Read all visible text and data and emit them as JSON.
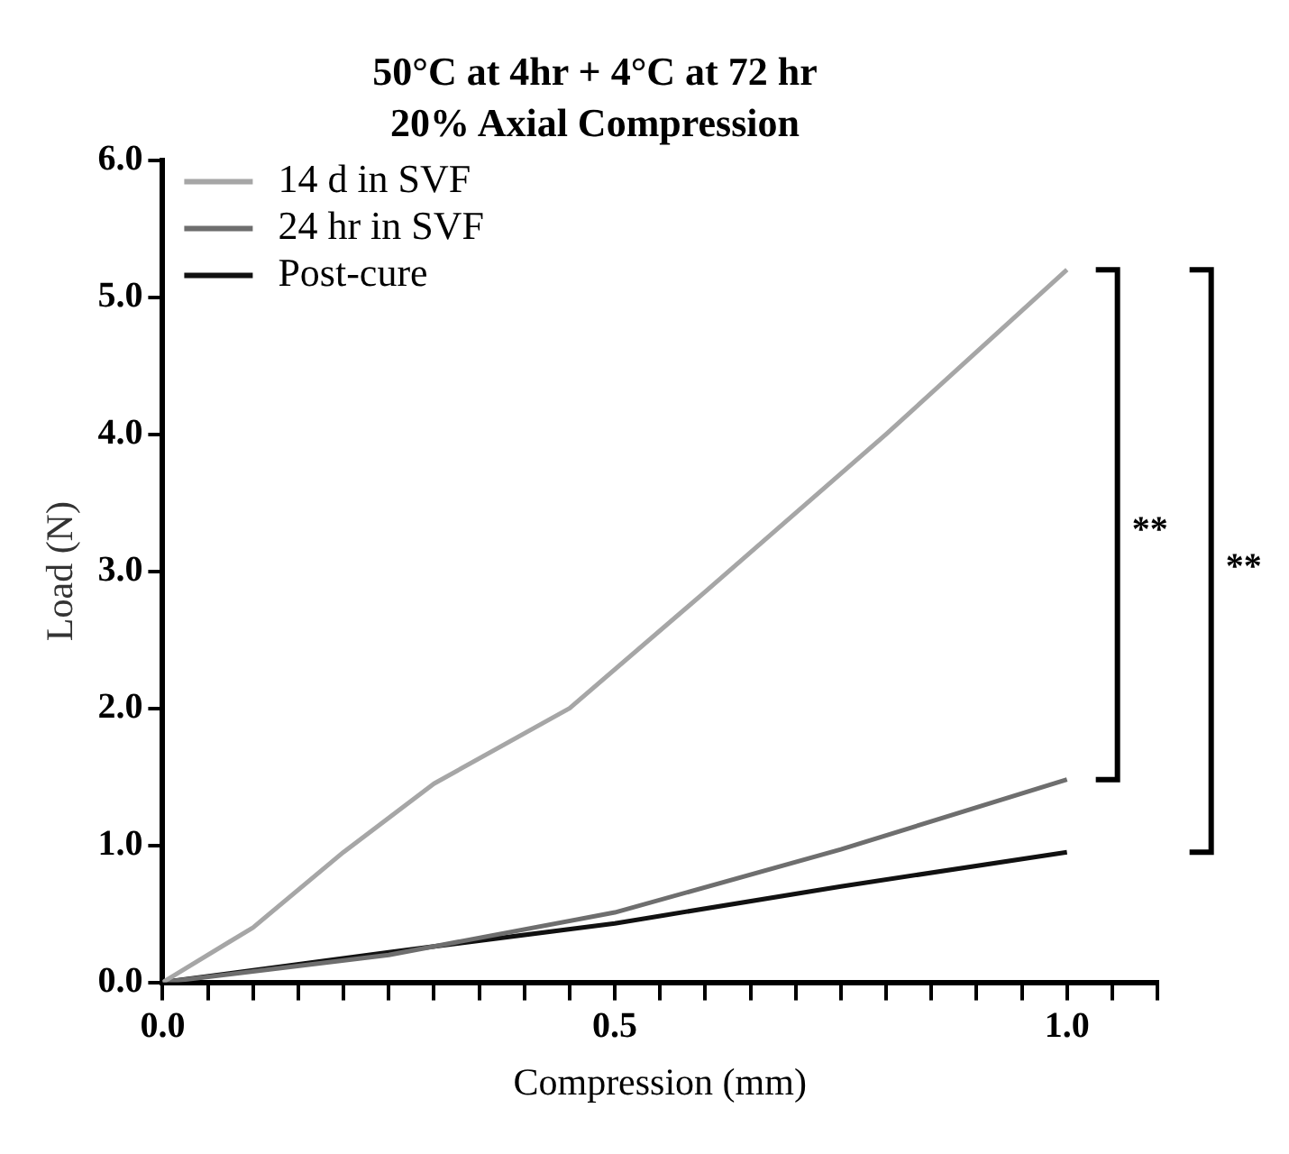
{
  "chart_data": {
    "type": "line",
    "title": "50°C at 4hr + 4°C at 72 hr",
    "subtitle": "20% Axial Compression",
    "xlabel": "Compression (mm)",
    "ylabel": "Load (N)",
    "series": [
      {
        "name": "14 d in SVF",
        "color": "#a6a6a6",
        "x": [
          0,
          0.1,
          0.2,
          0.3,
          0.45,
          0.6,
          0.8,
          1.0
        ],
        "values": [
          0,
          0.4,
          0.95,
          1.45,
          2.0,
          2.85,
          4.0,
          5.2
        ]
      },
      {
        "name": "24 hr in SVF",
        "color": "#6e6e6e",
        "x": [
          0,
          0.25,
          0.5,
          0.75,
          1.0
        ],
        "values": [
          0,
          0.2,
          0.51,
          0.97,
          1.48
        ]
      },
      {
        "name": "Post-cure",
        "color": "#111111",
        "x": [
          0,
          0.25,
          0.5,
          0.75,
          1.0
        ],
        "values": [
          0,
          0.22,
          0.43,
          0.7,
          0.95
        ]
      }
    ],
    "xlim": [
      0,
      1.1
    ],
    "xticks": [
      {
        "value": 0,
        "label": "0.0"
      },
      {
        "value": 0.05,
        "label": null
      },
      {
        "value": 0.1,
        "label": null
      },
      {
        "value": 0.15,
        "label": null
      },
      {
        "value": 0.2,
        "label": null
      },
      {
        "value": 0.25,
        "label": null
      },
      {
        "value": 0.3,
        "label": null
      },
      {
        "value": 0.35,
        "label": null
      },
      {
        "value": 0.4,
        "label": null
      },
      {
        "value": 0.45,
        "label": null
      },
      0.5,
      {
        "value": 0.55,
        "label": null
      },
      {
        "value": 0.6,
        "label": null
      },
      {
        "value": 0.65,
        "label": null
      },
      {
        "value": 0.7,
        "label": null
      },
      {
        "value": 0.75,
        "label": null
      },
      {
        "value": 0.8,
        "label": null
      },
      {
        "value": 0.85,
        "label": null
      },
      {
        "value": 0.9,
        "label": null
      },
      {
        "value": 0.95,
        "label": null
      },
      {
        "value": 1,
        "label": "1.0"
      },
      {
        "value": 1.05,
        "label": null
      },
      {
        "value": 1.1,
        "label": null
      }
    ],
    "ylim": [
      0,
      6
    ],
    "yticks": [
      {
        "value": 0,
        "label": "0.0"
      },
      {
        "value": 1,
        "label": "1.0"
      },
      {
        "value": 2,
        "label": "2.0"
      },
      {
        "value": 3,
        "label": "3.0"
      },
      {
        "value": 4,
        "label": "4.0"
      },
      {
        "value": 5,
        "label": "5.0"
      },
      {
        "value": 6,
        "label": "6.0"
      }
    ],
    "annotations": [
      "**",
      "**"
    ],
    "grid": false,
    "legend": "top left",
    "marker": "none",
    "line_style": "solid"
  }
}
